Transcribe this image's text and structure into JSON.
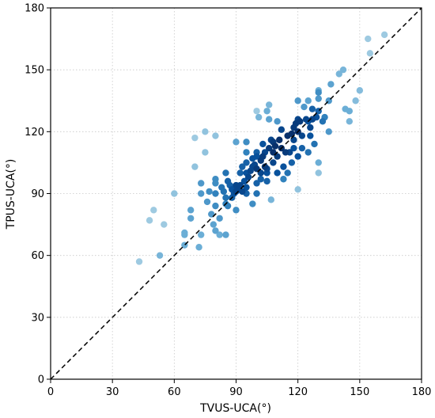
{
  "chart_data": {
    "type": "scatter",
    "xlabel": "TVUS-UCA(°)",
    "ylabel": "TPUS-UCA(°)",
    "xlim": [
      0,
      180
    ],
    "ylim": [
      0,
      180
    ],
    "xticks": [
      0,
      30,
      60,
      90,
      120,
      150,
      180
    ],
    "yticks": [
      0,
      30,
      60,
      90,
      120,
      150,
      180
    ],
    "grid": true,
    "reference_line": {
      "style": "dashed",
      "from": [
        0,
        0
      ],
      "to": [
        180,
        180
      ]
    },
    "color_encoding": "point density (light blue = sparse, dark navy = dense)",
    "points": [
      [
        43,
        57,
        0.3
      ],
      [
        48,
        77,
        0.3
      ],
      [
        50,
        82,
        0.3
      ],
      [
        53,
        60,
        0.45
      ],
      [
        55,
        75,
        0.3
      ],
      [
        60,
        90,
        0.35
      ],
      [
        65,
        65,
        0.5
      ],
      [
        65,
        71,
        0.5
      ],
      [
        65,
        70,
        0.5
      ],
      [
        68,
        82,
        0.55
      ],
      [
        68,
        78,
        0.55
      ],
      [
        70,
        117,
        0.3
      ],
      [
        70,
        103,
        0.35
      ],
      [
        72,
        64,
        0.5
      ],
      [
        73,
        70,
        0.5
      ],
      [
        73,
        95,
        0.6
      ],
      [
        73,
        90,
        0.6
      ],
      [
        75,
        120,
        0.35
      ],
      [
        75,
        110,
        0.35
      ],
      [
        76,
        86,
        0.6
      ],
      [
        77,
        91,
        0.65
      ],
      [
        78,
        80,
        0.6
      ],
      [
        79,
        75,
        0.55
      ],
      [
        80,
        118,
        0.35
      ],
      [
        80,
        97,
        0.65
      ],
      [
        80,
        95,
        0.65
      ],
      [
        80,
        90,
        0.7
      ],
      [
        80,
        84,
        0.65
      ],
      [
        80,
        72,
        0.55
      ],
      [
        82,
        70,
        0.5
      ],
      [
        82,
        78,
        0.6
      ],
      [
        83,
        93,
        0.75
      ],
      [
        84,
        91,
        0.75
      ],
      [
        85,
        100,
        0.75
      ],
      [
        85,
        88,
        0.75
      ],
      [
        85,
        85,
        0.7
      ],
      [
        85,
        70,
        0.55
      ],
      [
        86,
        96,
        0.8
      ],
      [
        87,
        94,
        0.8
      ],
      [
        88,
        92,
        0.85
      ],
      [
        89,
        90,
        0.85
      ],
      [
        90,
        115,
        0.55
      ],
      [
        90,
        82,
        0.65
      ],
      [
        90,
        94,
        0.9
      ],
      [
        90,
        91,
        0.9
      ],
      [
        91,
        92,
        0.9
      ],
      [
        92,
        94,
        0.9
      ],
      [
        93,
        91,
        0.9
      ],
      [
        93,
        103,
        0.8
      ],
      [
        94,
        96,
        0.85
      ],
      [
        95,
        105,
        0.8
      ],
      [
        95,
        100,
        0.85
      ],
      [
        95,
        115,
        0.65
      ],
      [
        95,
        110,
        0.7
      ],
      [
        95,
        90,
        0.8
      ],
      [
        96,
        98,
        0.9
      ],
      [
        97,
        101,
        0.9
      ],
      [
        98,
        85,
        0.65
      ],
      [
        98,
        103,
        0.9
      ],
      [
        99,
        104,
        0.9
      ],
      [
        100,
        130,
        0.3
      ],
      [
        100,
        110,
        0.8
      ],
      [
        100,
        108,
        0.85
      ],
      [
        100,
        102,
        0.95
      ],
      [
        100,
        95,
        0.8
      ],
      [
        100,
        90,
        0.75
      ],
      [
        101,
        127,
        0.45
      ],
      [
        102,
        106,
        0.95
      ],
      [
        102,
        100,
        0.9
      ],
      [
        102,
        97,
        0.8
      ],
      [
        103,
        114,
        0.85
      ],
      [
        103,
        108,
        0.95
      ],
      [
        104,
        103,
        0.95
      ],
      [
        104,
        110,
        0.9
      ],
      [
        105,
        130,
        0.5
      ],
      [
        105,
        102,
        0.9
      ],
      [
        105,
        100,
        0.85
      ],
      [
        106,
        133,
        0.45
      ],
      [
        106,
        126,
        0.55
      ],
      [
        106,
        112,
        0.95
      ],
      [
        107,
        116,
        0.9
      ],
      [
        107,
        87,
        0.45
      ],
      [
        108,
        110,
        1.0
      ],
      [
        108,
        105,
        0.9
      ],
      [
        109,
        113,
        1.0
      ],
      [
        110,
        108,
        0.95
      ],
      [
        110,
        100,
        0.85
      ],
      [
        110,
        125,
        0.6
      ],
      [
        111,
        116,
        1.0
      ],
      [
        112,
        121,
        0.9
      ],
      [
        112,
        112,
        1.0
      ],
      [
        113,
        97,
        0.7
      ],
      [
        114,
        110,
        0.95
      ],
      [
        115,
        118,
        1.0
      ],
      [
        115,
        100,
        0.75
      ],
      [
        116,
        110,
        0.9
      ],
      [
        117,
        119,
        1.0
      ],
      [
        118,
        122,
        0.95
      ],
      [
        118,
        116,
        0.9
      ],
      [
        119,
        124,
        0.95
      ],
      [
        120,
        126,
        0.9
      ],
      [
        120,
        120,
        1.0
      ],
      [
        120,
        135,
        0.6
      ],
      [
        120,
        108,
        0.85
      ],
      [
        120,
        92,
        0.35
      ],
      [
        121,
        125,
        0.95
      ],
      [
        122,
        112,
        0.8
      ],
      [
        123,
        132,
        0.6
      ],
      [
        124,
        126,
        0.9
      ],
      [
        125,
        135,
        0.55
      ],
      [
        125,
        125,
        0.85
      ],
      [
        125,
        110,
        0.75
      ],
      [
        126,
        118,
        0.85
      ],
      [
        127,
        131,
        0.8
      ],
      [
        127,
        126,
        0.9
      ],
      [
        128,
        114,
        0.75
      ],
      [
        129,
        127,
        0.85
      ],
      [
        130,
        140,
        0.5
      ],
      [
        130,
        136,
        0.6
      ],
      [
        130,
        130,
        0.8
      ],
      [
        130,
        105,
        0.5
      ],
      [
        130,
        100,
        0.35
      ],
      [
        132,
        125,
        0.75
      ],
      [
        133,
        127,
        0.7
      ],
      [
        135,
        135,
        0.6
      ],
      [
        135,
        120,
        0.6
      ],
      [
        136,
        143,
        0.55
      ],
      [
        140,
        148,
        0.45
      ],
      [
        142,
        150,
        0.45
      ],
      [
        143,
        131,
        0.5
      ],
      [
        145,
        130,
        0.5
      ],
      [
        145,
        125,
        0.45
      ],
      [
        148,
        135,
        0.4
      ],
      [
        150,
        140,
        0.4
      ],
      [
        154,
        165,
        0.3
      ],
      [
        155,
        158,
        0.3
      ],
      [
        162,
        167,
        0.3
      ],
      [
        130,
        139,
        0.65
      ],
      [
        118,
        112,
        0.85
      ],
      [
        108,
        115,
        0.95
      ],
      [
        98,
        107,
        0.85
      ],
      [
        92,
        100,
        0.8
      ],
      [
        88,
        88,
        0.8
      ],
      [
        86,
        84,
        0.7
      ],
      [
        113,
        103,
        0.85
      ],
      [
        117,
        105,
        0.8
      ],
      [
        105,
        96,
        0.8
      ],
      [
        95,
        93,
        0.85
      ],
      [
        122,
        118,
        0.9
      ],
      [
        126,
        122,
        0.9
      ]
    ]
  }
}
